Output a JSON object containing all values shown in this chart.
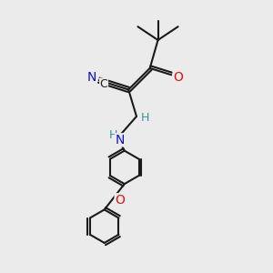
{
  "bg_color": "#ebebeb",
  "bond_color": "#1a1a1a",
  "bond_width": 1.5,
  "atom_colors": {
    "C": "#1a1a1a",
    "N": "#1010cc",
    "O": "#dd1111",
    "H": "#3a9090",
    "default": "#1a1a1a"
  },
  "font_size_atom": 9,
  "font_size_h": 8,
  "font_size_cn": 9
}
